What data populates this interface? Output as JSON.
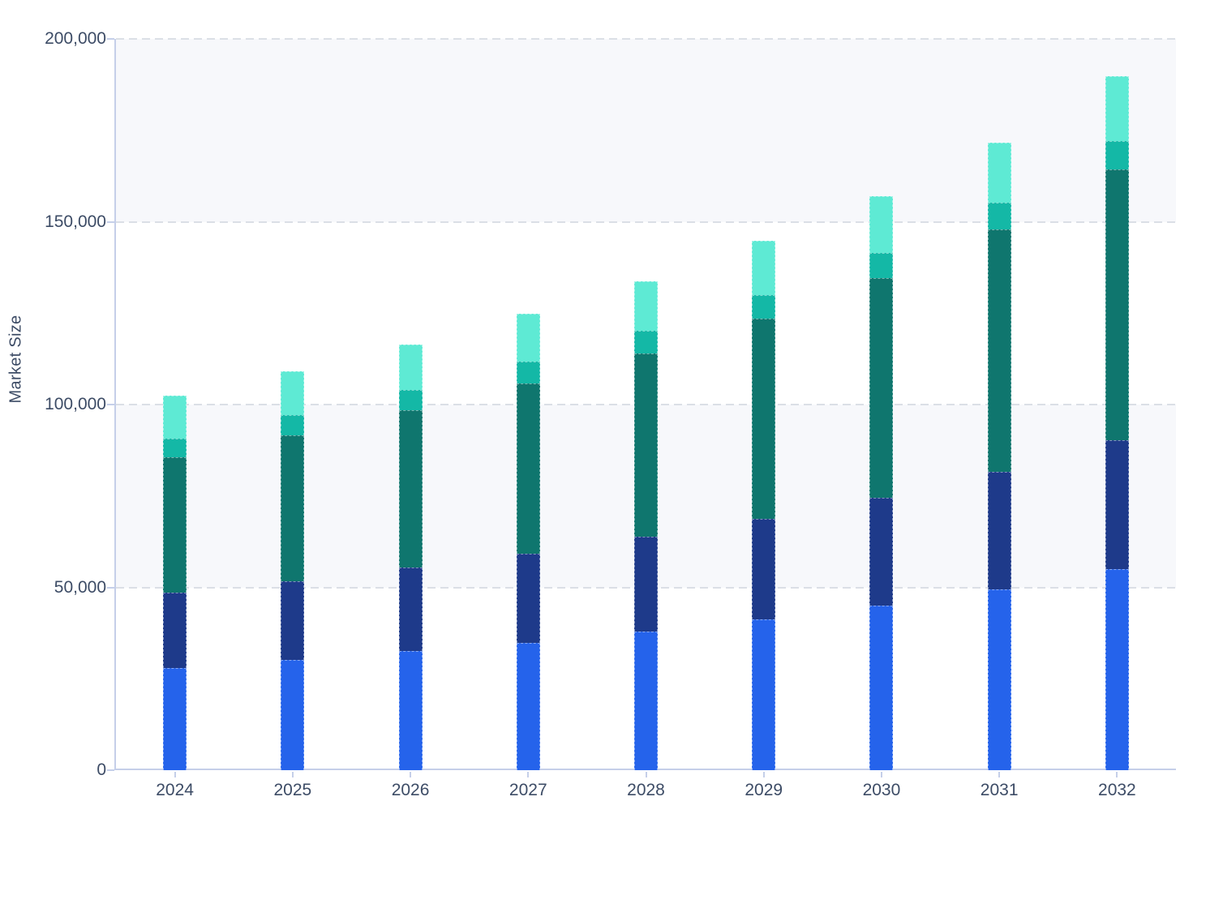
{
  "chart_data": {
    "type": "bar",
    "stacked": true,
    "title": "",
    "xlabel": "",
    "ylabel": "Market Size",
    "categories": [
      "2024",
      "2025",
      "2026",
      "2027",
      "2028",
      "2029",
      "2030",
      "2031",
      "2032"
    ],
    "series": [
      {
        "name": "series-blue",
        "color": "#2563eb",
        "values": [
          28000,
          30200,
          32700,
          34900,
          38000,
          41300,
          45100,
          49500,
          55100
        ]
      },
      {
        "name": "series-navy",
        "color": "#1e3a8a",
        "values": [
          20500,
          21400,
          22800,
          24200,
          25800,
          27400,
          29300,
          32100,
          35100
        ]
      },
      {
        "name": "series-dark-teal",
        "color": "#0f766e",
        "values": [
          37000,
          39900,
          42900,
          46700,
          50200,
          54900,
          60300,
          66400,
          74000
        ]
      },
      {
        "name": "series-teal",
        "color": "#14b8a6",
        "values": [
          5200,
          5600,
          5600,
          6000,
          6200,
          6400,
          6800,
          7300,
          7800
        ]
      },
      {
        "name": "series-mint",
        "color": "#5eead4",
        "values": [
          11700,
          12000,
          12400,
          13100,
          13600,
          14700,
          15400,
          16300,
          17800
        ]
      }
    ],
    "totals": [
      102400,
      109100,
      116400,
      124900,
      133800,
      144700,
      156900,
      171600,
      189800
    ],
    "ylim": [
      0,
      200000
    ],
    "yticks": [
      0,
      50000,
      100000,
      150000,
      200000
    ],
    "ytick_labels": [
      "0",
      "50,000",
      "100,000",
      "150,000",
      "200,000"
    ],
    "grid": "horizontal-dashed",
    "legend": "none",
    "background_bands": "alternating gray between 50k-100k and 150k-200k"
  },
  "style": {
    "band_color": "#f7f8fb",
    "gridline_color": "#dbdfe6",
    "axis_color": "#c5cfe9",
    "text_color": "#3d4c66",
    "background": "#ffffff"
  }
}
